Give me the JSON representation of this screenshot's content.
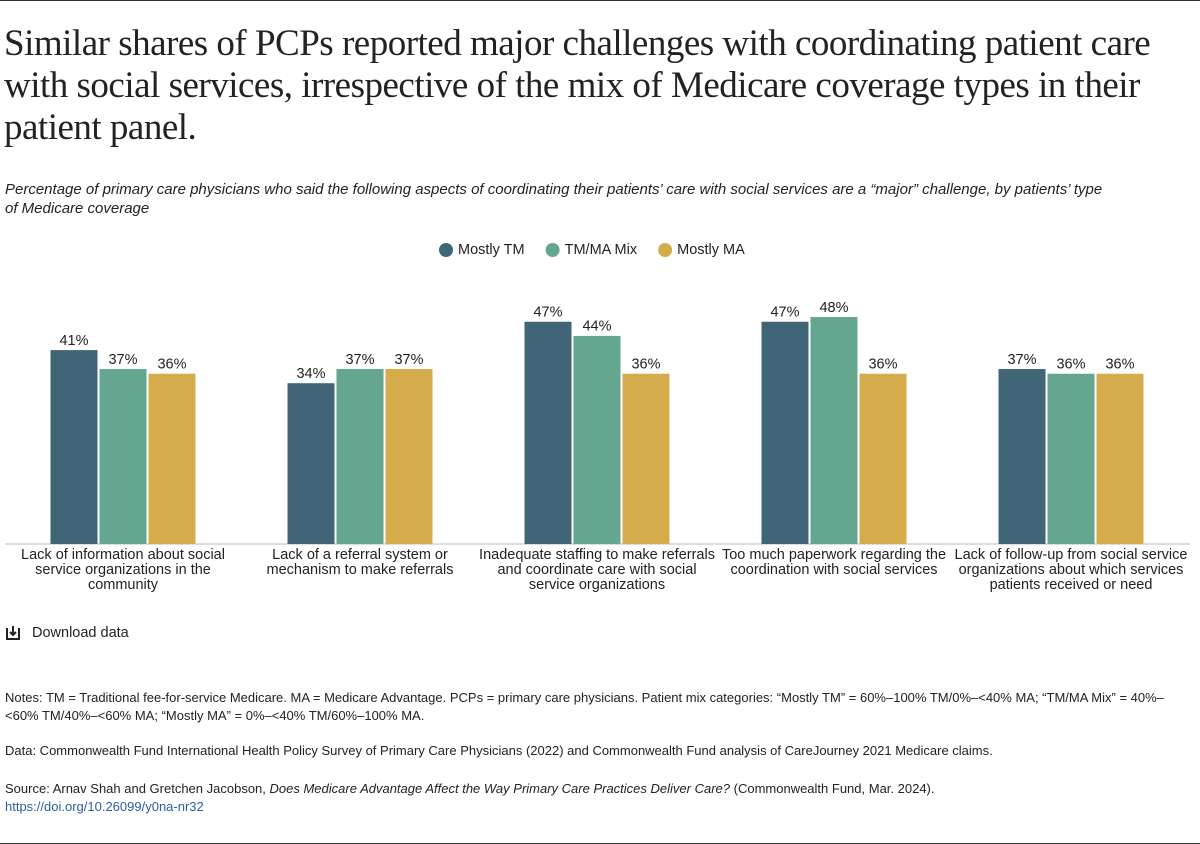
{
  "chart_data": {
    "type": "bar",
    "title": "Similar shares of PCPs reported major challenges with coordinating patient care with social services, irrespective of the mix of Medicare coverage types in their patient panel.",
    "subtitle": "Percentage of primary care physicians who said the following aspects of coordinating their patients’ care with social services are a “major” challenge, by patients’ type of Medicare coverage",
    "categories": [
      "Lack of information about social service organizations in the community",
      "Lack of a referral system or mechanism to make referrals",
      "Inadequate staffing to make referrals and coordinate care with social service organizations",
      "Too much paperwork regarding the coordination with social services",
      "Lack of follow-up from social service organizations about which services patients received or need"
    ],
    "series": [
      {
        "name": "Mostly TM",
        "color": "#3f6577",
        "values": [
          41,
          34,
          47,
          47,
          37
        ],
        "value_labels": [
          "41%",
          "34%",
          "47%",
          "47%",
          "37%"
        ]
      },
      {
        "name": "TM/MA Mix",
        "color": "#64a690",
        "values": [
          37,
          37,
          44,
          48,
          36
        ],
        "value_labels": [
          "37%",
          "37%",
          "44%",
          "48%",
          "36%"
        ]
      },
      {
        "name": "Mostly MA",
        "color": "#d4ac4c",
        "values": [
          36,
          37,
          36,
          36,
          36
        ],
        "value_labels": [
          "36%",
          "37%",
          "36%",
          "36%",
          "36%"
        ]
      }
    ]
  },
  "download": "Download data",
  "notes": "Notes: TM = Traditional fee-for-service Medicare. MA = Medicare Advantage. PCPs = primary care physicians. Patient mix categories: “Mostly TM” = 60%–100% TM/0%–<40% MA; “TM/MA Mix” = 40%–<60% TM/40%–<60% MA; “Mostly MA” = 0%–<40% TM/60%–100% MA.",
  "data_note": "Data: Commonwealth Fund International Health Policy Survey of Primary Care Physicians (2022) and Commonwealth Fund analysis of CareJourney 2021 Medicare claims.",
  "source": {
    "prefix": "Source: Arnav Shah and Gretchen Jacobson,",
    "title": "Does Medicare Advantage Affect the Way Primary Care Practices Deliver Care?",
    "suffix": "(Commonwealth Fund, Mar. 2024).",
    "link": "https://doi.org/10.26099/y0na-nr32"
  }
}
